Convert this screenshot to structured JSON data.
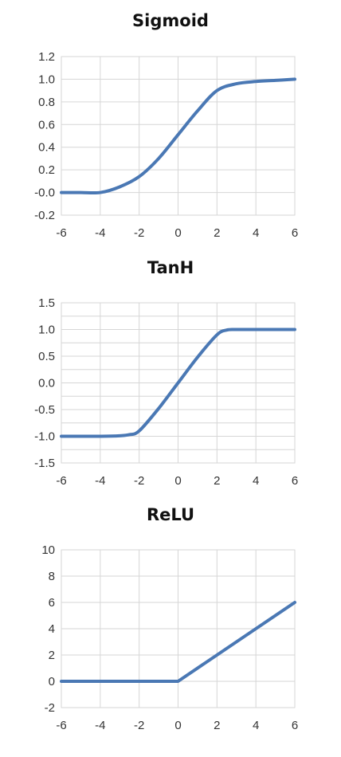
{
  "colors": {
    "line": "#4a78b4",
    "grid": "#d6d6d6",
    "text": "#333333"
  },
  "chart_data": [
    {
      "type": "line",
      "title": "Sigmoid",
      "xlabel": "",
      "ylabel": "",
      "xlim": [
        -6,
        6
      ],
      "ylim": [
        -0.2,
        1.2
      ],
      "x_ticks": [
        -6,
        -4,
        -2,
        0,
        2,
        4,
        6
      ],
      "y_ticks": [
        -0.2,
        0,
        0.2,
        0.4,
        0.6,
        0.8,
        1.0,
        1.2
      ],
      "x_tick_labels": [
        "-6",
        "-4",
        "-2",
        "0",
        "2",
        "4",
        "6"
      ],
      "y_tick_labels": [
        "-0.2",
        "-0.0",
        "0.2",
        "0.4",
        "0.6",
        "0.8",
        "1.0",
        "1.2"
      ],
      "grid": true,
      "series": [
        {
          "x": [
            -6,
            -5,
            -4,
            -3,
            -2,
            -1,
            0,
            1,
            2,
            3,
            4,
            5,
            6
          ],
          "values": [
            0.0,
            0.0,
            0.0,
            0.05,
            0.14,
            0.3,
            0.51,
            0.72,
            0.9,
            0.96,
            0.98,
            0.99,
            1.0
          ]
        }
      ]
    },
    {
      "type": "line",
      "title": "TanH",
      "xlabel": "",
      "ylabel": "",
      "xlim": [
        -6,
        6
      ],
      "ylim": [
        -1.5,
        1.5
      ],
      "x_ticks": [
        -6,
        -4,
        -2,
        0,
        2,
        4,
        6
      ],
      "y_ticks": [
        -1.5,
        -1.25,
        -1.0,
        -0.75,
        -0.5,
        -0.25,
        0,
        0.25,
        0.5,
        0.75,
        1.0,
        1.25,
        1.5
      ],
      "x_tick_labels": [
        "-6",
        "-4",
        "-2",
        "0",
        "2",
        "4",
        "6"
      ],
      "y_tick_labels": [
        "-1.5",
        "",
        "-1.0",
        "",
        "-0.5",
        "",
        "0.0",
        "",
        "0.5",
        "",
        "1.0",
        "",
        "1.5"
      ],
      "grid": true,
      "series": [
        {
          "x": [
            -6,
            -5,
            -4,
            -3,
            -2.5,
            -2,
            -1,
            0,
            1,
            2,
            2.5,
            3,
            4,
            5,
            6
          ],
          "values": [
            -1.0,
            -1.0,
            -1.0,
            -0.99,
            -0.97,
            -0.9,
            -0.48,
            0.0,
            0.48,
            0.9,
            0.99,
            1.0,
            1.0,
            1.0,
            1.0
          ]
        }
      ]
    },
    {
      "type": "line",
      "title": "ReLU",
      "xlabel": "",
      "ylabel": "",
      "xlim": [
        -6,
        6
      ],
      "ylim": [
        -2,
        10
      ],
      "x_ticks": [
        -6,
        -4,
        -2,
        0,
        2,
        4,
        6
      ],
      "y_ticks": [
        -2,
        0,
        2,
        4,
        6,
        8,
        10
      ],
      "x_tick_labels": [
        "-6",
        "-4",
        "-2",
        "0",
        "2",
        "4",
        "6"
      ],
      "y_tick_labels": [
        "-2",
        "0",
        "2",
        "4",
        "6",
        "8",
        "10"
      ],
      "grid": true,
      "series": [
        {
          "x": [
            -6,
            -4,
            -2,
            0,
            2,
            4,
            6
          ],
          "values": [
            0,
            0,
            0,
            0,
            2,
            4,
            6
          ]
        }
      ]
    }
  ]
}
